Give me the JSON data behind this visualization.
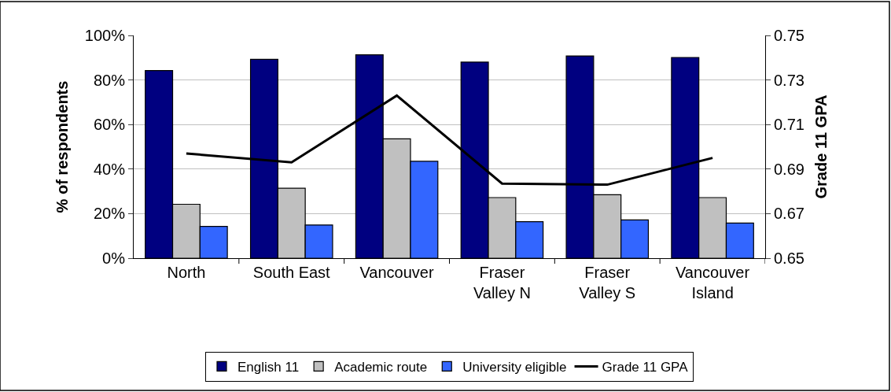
{
  "chart_data": {
    "type": "bar",
    "ylabel": "% of respondents",
    "y2label": "Grade 11 GPA",
    "categories": [
      "North",
      "South East",
      "Vancouver",
      "Fraser\nValley N",
      "Fraser\nValley S",
      "Vancouver\nIsland"
    ],
    "series": [
      {
        "name": "English 11",
        "color": "#000080",
        "values": [
          84.2,
          89.3,
          91.3,
          88.0,
          90.8,
          90.1
        ]
      },
      {
        "name": "Academic route",
        "color": "#c0c0c0",
        "values": [
          24.2,
          31.4,
          53.6,
          27.2,
          28.5,
          27.2
        ]
      },
      {
        "name": "University eligible",
        "color": "#3366ff",
        "values": [
          14.3,
          14.9,
          43.5,
          16.4,
          17.2,
          15.8
        ]
      },
      {
        "name": "Grade 11 GPA",
        "type": "line",
        "axis": "y2",
        "color": "#000000",
        "values": [
          0.697,
          0.693,
          0.723,
          0.6835,
          0.683,
          0.695
        ]
      }
    ],
    "ylim": [
      0,
      100
    ],
    "yticks": [
      {
        "value": 0,
        "label": "0%"
      },
      {
        "value": 20,
        "label": "20%"
      },
      {
        "value": 40,
        "label": "40%"
      },
      {
        "value": 60,
        "label": "60%"
      },
      {
        "value": 80,
        "label": "80%"
      },
      {
        "value": 100,
        "label": "100%"
      }
    ],
    "y2lim": [
      0.65,
      0.75
    ],
    "y2ticks": [
      0.65,
      0.67,
      0.69,
      0.71,
      0.73,
      0.75
    ],
    "grid": "y",
    "legend": "bottom",
    "marker": "none",
    "line_style": "solid"
  }
}
